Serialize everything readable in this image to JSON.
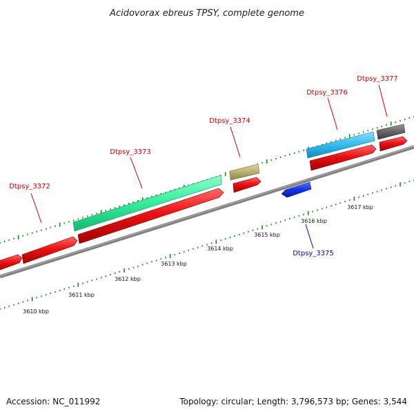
{
  "title": "Acidovorax ebreus TPSY, complete genome",
  "footer": {
    "accession": "Accession: NC_011992",
    "summary": "Topology: circular; Length: 3,796,573 bp; Genes: 3,544"
  },
  "colors": {
    "forward_label": "#cc0000",
    "reverse_label": "#0000cc",
    "backbone": "#808080",
    "tick": "#118811",
    "cds": "#ee1111"
  },
  "kbp_labels": [
    "3610 kbp",
    "3611 kbp",
    "3612 kbp",
    "3613 kbp",
    "3614 kbp",
    "3615 kbp",
    "3616 kbp",
    "3617 kbp"
  ],
  "gene_labels": {
    "g3372": "Dtpsy_3372",
    "g3373": "Dtpsy_3373",
    "g3374": "Dtpsy_3374",
    "g3375": "Dtpsy_3375",
    "g3376": "Dtpsy_3376",
    "g3377": "Dtpsy_3377"
  },
  "gene_colors": {
    "g3373": "#33ee99",
    "g3374": "#b8b070",
    "g3375": "#1133ee",
    "g3376": "#33bbee",
    "g3377": "#666666"
  }
}
